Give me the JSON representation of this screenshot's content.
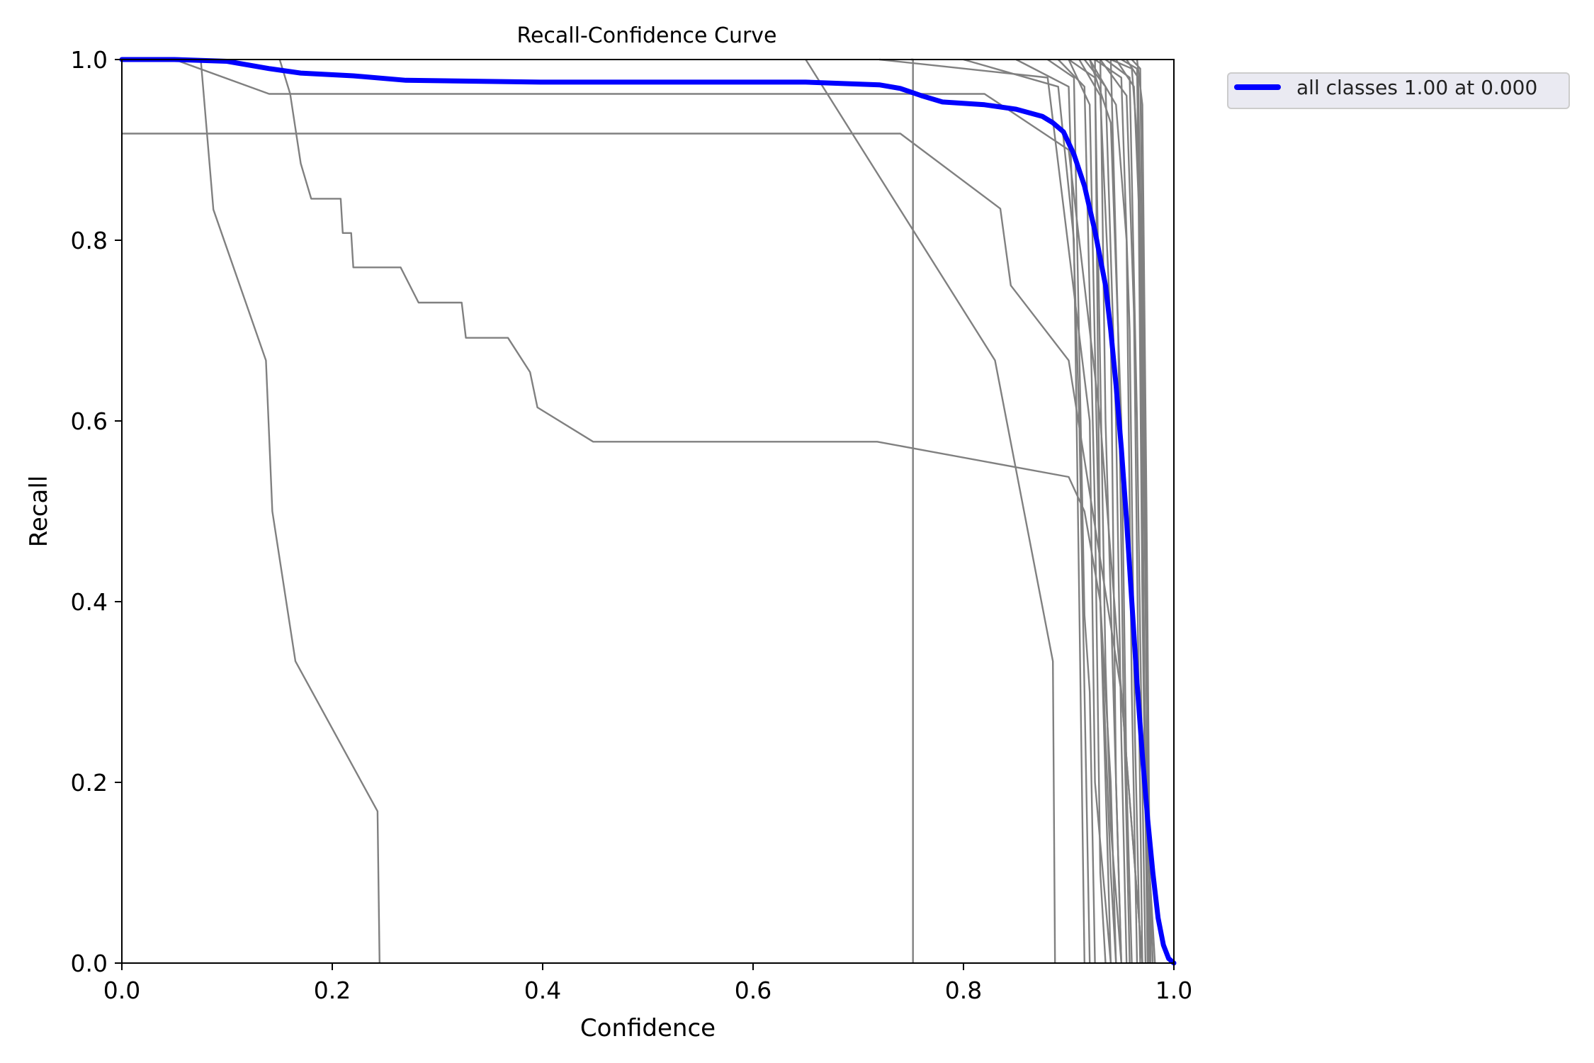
{
  "chart_data": {
    "type": "line",
    "title": "Recall-Confidence Curve",
    "xlabel": "Confidence",
    "ylabel": "Recall",
    "xlim": [
      0,
      1
    ],
    "ylim": [
      0,
      1
    ],
    "xticks": [
      "0.0",
      "0.2",
      "0.4",
      "0.6",
      "0.8",
      "1.0"
    ],
    "yticks": [
      "0.0",
      "0.2",
      "0.4",
      "0.6",
      "0.8",
      "1.0"
    ],
    "grid": false,
    "legend_position": "outside-top-right",
    "colors": {
      "class_curves": "#808080",
      "all_classes": "#0000ff"
    },
    "highlight_series": {
      "name": "all classes 1.00 at 0.000",
      "x": [
        0.0,
        0.05,
        0.1,
        0.14,
        0.17,
        0.22,
        0.27,
        0.4,
        0.5,
        0.65,
        0.72,
        0.74,
        0.76,
        0.78,
        0.82,
        0.85,
        0.875,
        0.885,
        0.895,
        0.905,
        0.915,
        0.925,
        0.935,
        0.94,
        0.945,
        0.95,
        0.955,
        0.96,
        0.965,
        0.97,
        0.975,
        0.98,
        0.985,
        0.99,
        0.995,
        1.0
      ],
      "y": [
        1.0,
        1.0,
        0.998,
        0.99,
        0.985,
        0.982,
        0.977,
        0.975,
        0.975,
        0.975,
        0.972,
        0.968,
        0.96,
        0.953,
        0.95,
        0.945,
        0.937,
        0.93,
        0.92,
        0.895,
        0.86,
        0.81,
        0.75,
        0.7,
        0.64,
        0.57,
        0.49,
        0.4,
        0.31,
        0.23,
        0.16,
        0.1,
        0.05,
        0.02,
        0.005,
        0.0
      ]
    },
    "class_series": [
      {
        "x": [
          0.0,
          0.05,
          0.14,
          0.82,
          0.9,
          0.93,
          0.97
        ],
        "y": [
          1.0,
          1.0,
          0.962,
          0.962,
          0.9,
          0.6,
          0.0
        ]
      },
      {
        "x": [
          0.0,
          0.74,
          0.835,
          0.845,
          0.9,
          0.95,
          0.97
        ],
        "y": [
          0.918,
          0.918,
          0.835,
          0.75,
          0.667,
          0.3,
          0.0
        ]
      },
      {
        "x": [
          0.0,
          0.075,
          0.087,
          0.137,
          0.143,
          0.165,
          0.243,
          0.245
        ],
        "y": [
          1.0,
          1.0,
          0.834,
          0.667,
          0.5,
          0.334,
          0.168,
          0.0
        ]
      },
      {
        "x": [
          0.15,
          0.16,
          0.17,
          0.18,
          0.208,
          0.21,
          0.218,
          0.22,
          0.265,
          0.282,
          0.323,
          0.327,
          0.367,
          0.388,
          0.395,
          0.448,
          0.718,
          0.9,
          0.915,
          0.93,
          0.94
        ],
        "y": [
          1.0,
          0.962,
          0.885,
          0.846,
          0.846,
          0.808,
          0.808,
          0.77,
          0.77,
          0.731,
          0.731,
          0.692,
          0.692,
          0.654,
          0.615,
          0.577,
          0.577,
          0.538,
          0.5,
          0.4,
          0.0
        ]
      },
      {
        "x": [
          0.65,
          0.83,
          0.885,
          0.887
        ],
        "y": [
          1.0,
          0.667,
          0.334,
          0.0
        ]
      },
      {
        "x": [
          0.75,
          0.752,
          0.752
        ],
        "y": [
          1.0,
          1.0,
          0.0
        ]
      },
      {
        "x": [
          0.72,
          0.88,
          0.92,
          0.925,
          0.94
        ],
        "y": [
          1.0,
          0.98,
          0.6,
          0.2,
          0.0
        ]
      },
      {
        "x": [
          0.8,
          0.89,
          0.905,
          0.91,
          0.915
        ],
        "y": [
          1.0,
          0.97,
          0.8,
          0.4,
          0.0
        ]
      },
      {
        "x": [
          0.85,
          0.9,
          0.91,
          0.915,
          0.92
        ],
        "y": [
          1.0,
          0.97,
          0.6,
          0.3,
          0.0
        ]
      },
      {
        "x": [
          0.88,
          0.905,
          0.915,
          0.92,
          0.925
        ],
        "y": [
          1.0,
          0.98,
          0.385,
          0.3,
          0.0
        ]
      },
      {
        "x": [
          0.89,
          0.915,
          0.925,
          0.93,
          0.935
        ],
        "y": [
          1.0,
          0.97,
          0.5,
          0.1,
          0.0
        ]
      },
      {
        "x": [
          0.9,
          0.92,
          0.93,
          0.94,
          0.945
        ],
        "y": [
          1.0,
          0.95,
          0.4,
          0.2,
          0.0
        ]
      },
      {
        "x": [
          0.9,
          0.925,
          0.935,
          0.94,
          0.95
        ],
        "y": [
          1.0,
          0.98,
          0.33,
          0.15,
          0.0
        ]
      },
      {
        "x": [
          0.91,
          0.93,
          0.94,
          0.945,
          0.95
        ],
        "y": [
          1.0,
          0.96,
          0.7,
          0.2,
          0.0
        ]
      },
      {
        "x": [
          0.915,
          0.935,
          0.945,
          0.95,
          0.955
        ],
        "y": [
          1.0,
          0.97,
          0.6,
          0.25,
          0.0
        ]
      },
      {
        "x": [
          0.92,
          0.94,
          0.95,
          0.955,
          0.96
        ],
        "y": [
          1.0,
          0.93,
          0.6,
          0.2,
          0.0
        ]
      },
      {
        "x": [
          0.92,
          0.945,
          0.955,
          0.96,
          0.965
        ],
        "y": [
          1.0,
          0.95,
          0.8,
          0.3,
          0.0
        ]
      },
      {
        "x": [
          0.925,
          0.95,
          0.958,
          0.963,
          0.968
        ],
        "y": [
          1.0,
          0.98,
          0.7,
          0.25,
          0.0
        ]
      },
      {
        "x": [
          0.93,
          0.955,
          0.962,
          0.966,
          0.97
        ],
        "y": [
          1.0,
          0.96,
          0.72,
          0.35,
          0.0
        ]
      },
      {
        "x": [
          0.935,
          0.958,
          0.965,
          0.97,
          0.973
        ],
        "y": [
          1.0,
          0.98,
          0.6,
          0.2,
          0.0
        ]
      },
      {
        "x": [
          0.94,
          0.96,
          0.966,
          0.97,
          0.975
        ],
        "y": [
          1.0,
          0.99,
          0.9,
          0.4,
          0.0
        ]
      },
      {
        "x": [
          0.945,
          0.962,
          0.968,
          0.972,
          0.976
        ],
        "y": [
          1.0,
          0.97,
          0.8,
          0.3,
          0.0
        ]
      },
      {
        "x": [
          0.95,
          0.965,
          0.97,
          0.973,
          0.977
        ],
        "y": [
          1.0,
          0.99,
          0.55,
          0.2,
          0.0
        ]
      },
      {
        "x": [
          0.955,
          0.966,
          0.97,
          0.974,
          0.978
        ],
        "y": [
          1.0,
          0.98,
          0.7,
          0.3,
          0.0
        ]
      },
      {
        "x": [
          0.96,
          0.968,
          0.972,
          0.975,
          0.98
        ],
        "y": [
          1.0,
          0.99,
          0.6,
          0.15,
          0.0
        ]
      },
      {
        "x": [
          0.965,
          0.97,
          0.974,
          0.977,
          0.982
        ],
        "y": [
          1.0,
          0.95,
          0.5,
          0.1,
          0.0
        ]
      },
      {
        "x": [
          0.925,
          0.93,
          0.94,
          0.945
        ],
        "y": [
          1.0,
          0.4,
          0.1,
          0.0
        ]
      },
      {
        "x": [
          0.93,
          0.935,
          0.945,
          0.95
        ],
        "y": [
          1.0,
          0.6,
          0.2,
          0.0
        ]
      },
      {
        "x": [
          0.94,
          0.947,
          0.952,
          0.958
        ],
        "y": [
          1.0,
          0.7,
          0.3,
          0.0
        ]
      }
    ]
  }
}
